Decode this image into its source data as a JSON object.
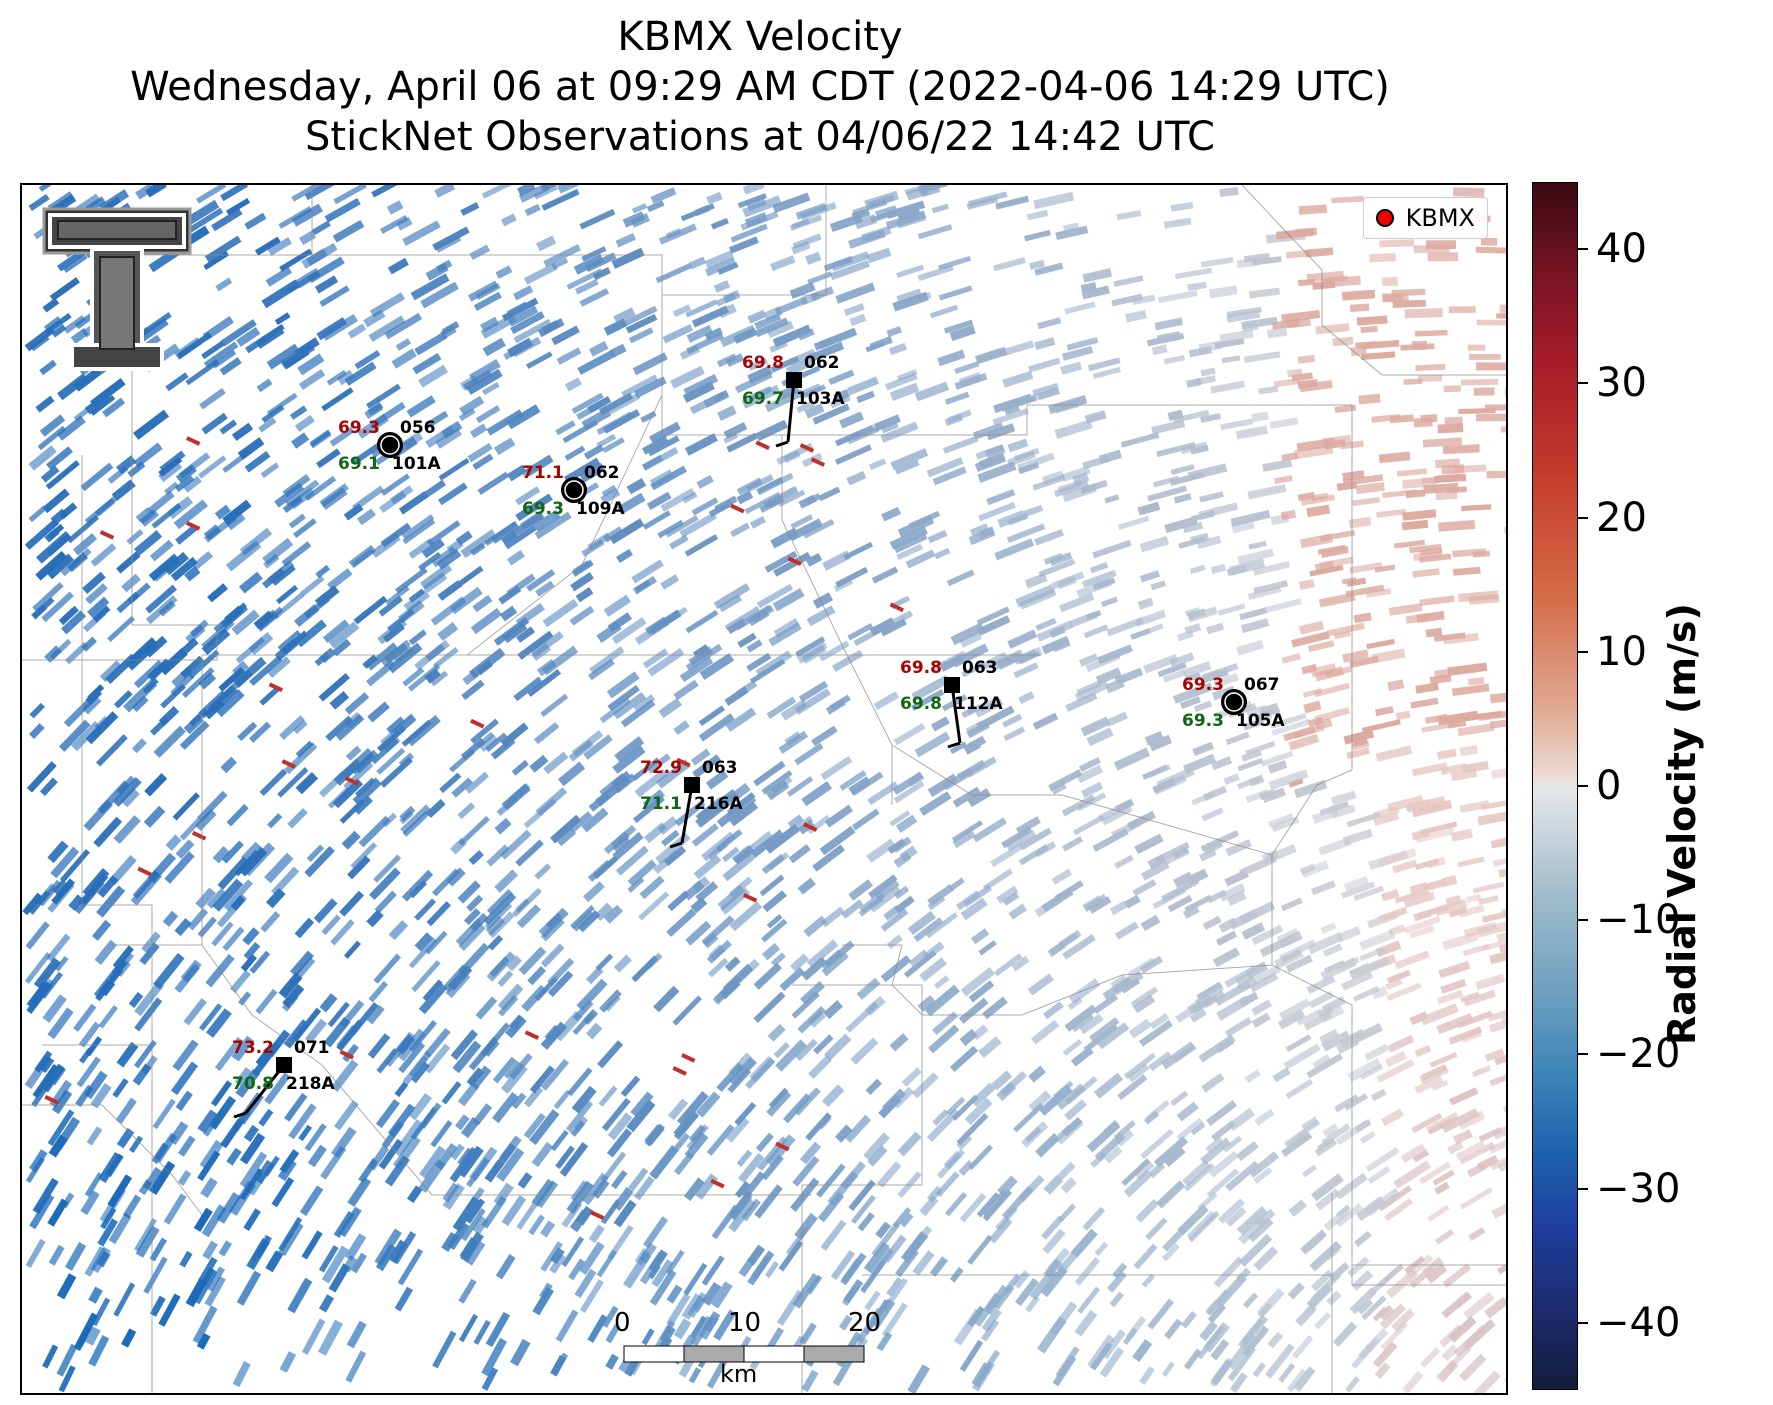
{
  "title": {
    "line1": "KBMX Velocity",
    "line2": "Wednesday, April 06 at 09:29 AM CDT (2022-04-06 14:29 UTC)",
    "line3": "StickNet Observations at 04/06/22 14:42 UTC"
  },
  "legend": {
    "label": "KBMX",
    "marker_color": "#e00000"
  },
  "logo": {
    "icon": "double-t-logo"
  },
  "stations": [
    {
      "id": "101A",
      "temp": "69.3",
      "dew": "69.1",
      "dir": "056",
      "marker": "circle"
    },
    {
      "id": "109A",
      "temp": "71.1",
      "dew": "69.3",
      "dir": "062",
      "marker": "circle"
    },
    {
      "id": "103A",
      "temp": "69.8",
      "dew": "69.7",
      "dir": "062",
      "marker": "square"
    },
    {
      "id": "112A",
      "temp": "69.8",
      "dew": "69.8",
      "dir": "063",
      "marker": "square"
    },
    {
      "id": "105A",
      "temp": "69.3",
      "dew": "69.3",
      "dir": "067",
      "marker": "circle"
    },
    {
      "id": "216A",
      "temp": "72.9",
      "dew": "71.1",
      "dir": "063",
      "marker": "square"
    },
    {
      "id": "218A",
      "temp": "73.2",
      "dew": "70.8",
      "dir": "071",
      "marker": "square"
    }
  ],
  "scalebar": {
    "labels": [
      "0",
      "10",
      "20"
    ],
    "unit": "km"
  },
  "colorbar": {
    "title": "Radial Velocity (m/s)",
    "ticks": [
      "40",
      "30",
      "20",
      "10",
      "0",
      "−10",
      "−20",
      "−30",
      "−40"
    ],
    "range": [
      -45,
      45
    ]
  },
  "colors": {
    "temp": "#aa0000",
    "dew": "#116611",
    "id": "#000000"
  }
}
